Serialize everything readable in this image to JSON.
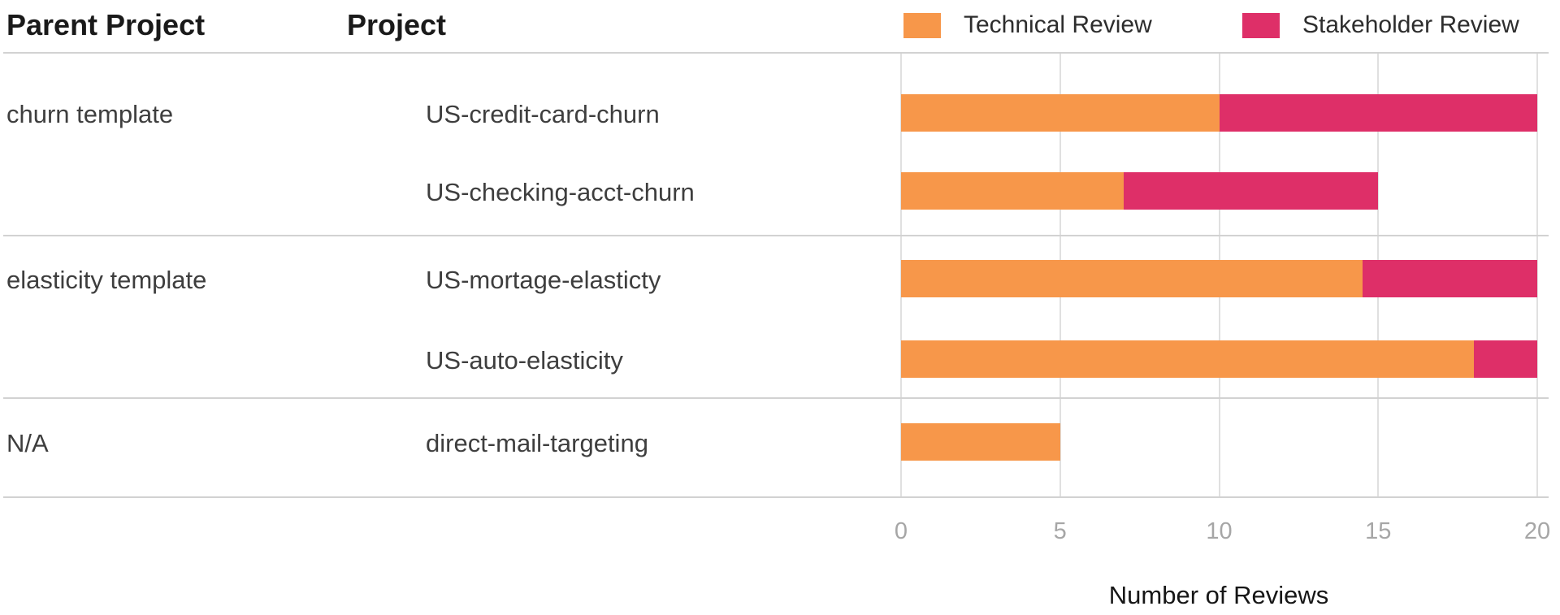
{
  "table": {
    "columns": [
      "Parent Project",
      "Project"
    ],
    "groups": [
      {
        "parent": "churn template",
        "projects": [
          "US-credit-card-churn",
          "US-checking-acct-churn"
        ]
      },
      {
        "parent": "elasticity template",
        "projects": [
          "US-mortage-elasticty",
          "US-auto-elasticity"
        ]
      },
      {
        "parent": "N/A",
        "projects": [
          "direct-mail-targeting"
        ]
      }
    ]
  },
  "legend": [
    {
      "label": "Technical Review",
      "color": "#F7974A"
    },
    {
      "label": "Stakeholder Review",
      "color": "#DE2F68"
    }
  ],
  "chart_data": {
    "type": "bar",
    "orientation": "horizontal",
    "stacked": true,
    "categories": [
      "US-credit-card-churn",
      "US-checking-acct-churn",
      "US-mortage-elasticty",
      "US-auto-elasticity",
      "direct-mail-targeting"
    ],
    "category_parents": [
      "churn template",
      "churn template",
      "elasticity template",
      "elasticity template",
      "N/A"
    ],
    "series": [
      {
        "name": "Technical Review",
        "color": "#F7974A",
        "values": [
          10,
          7,
          14.5,
          18,
          5
        ]
      },
      {
        "name": "Stakeholder Review",
        "color": "#DE2F68",
        "values": [
          10,
          8,
          5.5,
          2,
          0
        ]
      }
    ],
    "totals": [
      20,
      15,
      20,
      20,
      5
    ],
    "title": "",
    "xlabel": "Number of Reviews",
    "ylabel": "",
    "x_ticks": [
      0,
      5,
      10,
      15,
      20
    ],
    "xlim": [
      0,
      20
    ],
    "grid": true,
    "legend_position": "top-right"
  },
  "colors": {
    "technical_review": "#F7974A",
    "stakeholder_review": "#DE2F68",
    "gridline": "#e0e0e0",
    "separator": "#d2d2d2",
    "tick_text": "#a6a6a6",
    "label_text": "#3e3e3e",
    "header_text": "#1a1a1a",
    "background": "#ffffff"
  }
}
